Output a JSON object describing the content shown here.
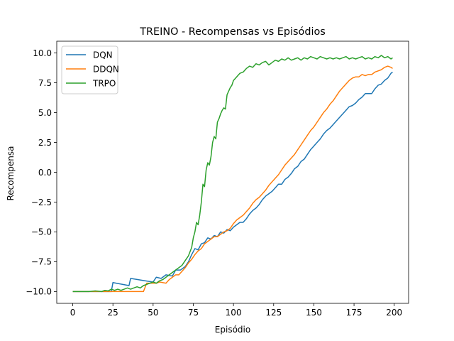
{
  "chart_data": {
    "type": "line",
    "title": "TREINO - Recompensas vs Episódios",
    "xlabel": "Episódio",
    "ylabel": "Recompensa",
    "xlim": [
      -9.95,
      208.95
    ],
    "ylim": [
      -10.99,
      10.99
    ],
    "xticks": [
      0,
      25,
      50,
      75,
      100,
      125,
      150,
      175,
      200
    ],
    "yticks": [
      -10.0,
      -7.5,
      -5.0,
      -2.5,
      0.0,
      2.5,
      5.0,
      7.5,
      10.0
    ],
    "xtick_labels": [
      "0",
      "25",
      "50",
      "75",
      "100",
      "125",
      "150",
      "175",
      "200"
    ],
    "ytick_labels": [
      "−10.0",
      "−7.5",
      "−5.0",
      "−2.5",
      "0.0",
      "2.5",
      "5.0",
      "7.5",
      "10.0"
    ],
    "grid": false,
    "legend_position": "upper left",
    "series": [
      {
        "name": "DQN",
        "color": "#1f77b4",
        "points": [
          [
            0,
            -10
          ],
          [
            24,
            -10
          ],
          [
            25,
            -9.25
          ],
          [
            35,
            -9.5
          ],
          [
            36,
            -8.9
          ],
          [
            45,
            -9.1
          ],
          [
            50,
            -9.2
          ],
          [
            52,
            -8.8
          ],
          [
            55,
            -8.9
          ],
          [
            58,
            -8.6
          ],
          [
            62,
            -8.7
          ],
          [
            64,
            -8.2
          ],
          [
            67,
            -8.2
          ],
          [
            70,
            -7.9
          ],
          [
            72,
            -7.5
          ],
          [
            74,
            -6.9
          ],
          [
            76,
            -6.4
          ],
          [
            78,
            -6.5
          ],
          [
            80,
            -6.0
          ],
          [
            82,
            -5.9
          ],
          [
            84,
            -5.5
          ],
          [
            86,
            -5.6
          ],
          [
            88,
            -5.3
          ],
          [
            90,
            -5.4
          ],
          [
            92,
            -5.0
          ],
          [
            94,
            -5.1
          ],
          [
            96,
            -4.8
          ],
          [
            98,
            -4.9
          ],
          [
            100,
            -4.6
          ],
          [
            102,
            -4.4
          ],
          [
            104,
            -4.2
          ],
          [
            106,
            -4.2
          ],
          [
            108,
            -3.9
          ],
          [
            110,
            -3.5
          ],
          [
            112,
            -3.2
          ],
          [
            114,
            -3.0
          ],
          [
            116,
            -2.7
          ],
          [
            118,
            -2.3
          ],
          [
            120,
            -2.0
          ],
          [
            122,
            -1.8
          ],
          [
            124,
            -1.6
          ],
          [
            126,
            -1.3
          ],
          [
            128,
            -1.0
          ],
          [
            130,
            -1.0
          ],
          [
            132,
            -0.6
          ],
          [
            134,
            -0.4
          ],
          [
            136,
            -0.1
          ],
          [
            138,
            0.3
          ],
          [
            140,
            0.5
          ],
          [
            142,
            0.9
          ],
          [
            144,
            1.1
          ],
          [
            146,
            1.5
          ],
          [
            148,
            1.9
          ],
          [
            150,
            2.2
          ],
          [
            152,
            2.5
          ],
          [
            154,
            2.8
          ],
          [
            156,
            3.2
          ],
          [
            158,
            3.5
          ],
          [
            160,
            3.7
          ],
          [
            162,
            4.0
          ],
          [
            164,
            4.3
          ],
          [
            166,
            4.6
          ],
          [
            168,
            4.9
          ],
          [
            170,
            5.2
          ],
          [
            172,
            5.5
          ],
          [
            174,
            5.6
          ],
          [
            176,
            5.8
          ],
          [
            178,
            6.1
          ],
          [
            180,
            6.3
          ],
          [
            182,
            6.6
          ],
          [
            184,
            6.6
          ],
          [
            186,
            6.6
          ],
          [
            188,
            7.0
          ],
          [
            190,
            7.3
          ],
          [
            192,
            7.4
          ],
          [
            194,
            7.7
          ],
          [
            196,
            7.9
          ],
          [
            198,
            8.3
          ],
          [
            199,
            8.4
          ]
        ]
      },
      {
        "name": "DDQN",
        "color": "#ff7f0e",
        "points": [
          [
            0,
            -10
          ],
          [
            44,
            -10
          ],
          [
            46,
            -9.3
          ],
          [
            52,
            -9.3
          ],
          [
            54,
            -9.2
          ],
          [
            58,
            -9.3
          ],
          [
            60,
            -9.0
          ],
          [
            64,
            -8.6
          ],
          [
            66,
            -8.6
          ],
          [
            68,
            -8.3
          ],
          [
            70,
            -8.0
          ],
          [
            72,
            -7.6
          ],
          [
            74,
            -7.3
          ],
          [
            76,
            -6.9
          ],
          [
            78,
            -6.6
          ],
          [
            80,
            -6.4
          ],
          [
            82,
            -6.0
          ],
          [
            84,
            -5.8
          ],
          [
            86,
            -5.6
          ],
          [
            88,
            -5.4
          ],
          [
            90,
            -5.4
          ],
          [
            92,
            -5.2
          ],
          [
            94,
            -5.0
          ],
          [
            96,
            -4.9
          ],
          [
            98,
            -4.7
          ],
          [
            100,
            -4.3
          ],
          [
            102,
            -4.0
          ],
          [
            104,
            -3.8
          ],
          [
            106,
            -3.6
          ],
          [
            108,
            -3.3
          ],
          [
            110,
            -3.0
          ],
          [
            112,
            -2.6
          ],
          [
            114,
            -2.3
          ],
          [
            116,
            -2.1
          ],
          [
            118,
            -1.8
          ],
          [
            120,
            -1.5
          ],
          [
            122,
            -1.1
          ],
          [
            124,
            -0.8
          ],
          [
            126,
            -0.5
          ],
          [
            128,
            -0.2
          ],
          [
            130,
            0.2
          ],
          [
            132,
            0.6
          ],
          [
            134,
            0.9
          ],
          [
            136,
            1.2
          ],
          [
            138,
            1.5
          ],
          [
            140,
            1.9
          ],
          [
            142,
            2.3
          ],
          [
            144,
            2.7
          ],
          [
            146,
            3.1
          ],
          [
            148,
            3.5
          ],
          [
            150,
            3.8
          ],
          [
            152,
            4.2
          ],
          [
            154,
            4.6
          ],
          [
            156,
            5.0
          ],
          [
            158,
            5.3
          ],
          [
            160,
            5.7
          ],
          [
            162,
            6.0
          ],
          [
            164,
            6.4
          ],
          [
            166,
            6.8
          ],
          [
            168,
            7.1
          ],
          [
            170,
            7.4
          ],
          [
            172,
            7.7
          ],
          [
            174,
            7.9
          ],
          [
            176,
            8.0
          ],
          [
            178,
            8.0
          ],
          [
            180,
            8.2
          ],
          [
            182,
            8.1
          ],
          [
            184,
            8.2
          ],
          [
            186,
            8.2
          ],
          [
            188,
            8.4
          ],
          [
            190,
            8.5
          ],
          [
            192,
            8.6
          ],
          [
            194,
            8.8
          ],
          [
            196,
            8.9
          ],
          [
            198,
            8.8
          ],
          [
            199,
            8.7
          ]
        ]
      },
      {
        "name": "TRPO",
        "color": "#2ca02c",
        "points": [
          [
            0,
            -10
          ],
          [
            10,
            -10
          ],
          [
            14,
            -9.95
          ],
          [
            18,
            -10
          ],
          [
            20,
            -9.9
          ],
          [
            22,
            -9.95
          ],
          [
            24,
            -9.8
          ],
          [
            26,
            -9.9
          ],
          [
            28,
            -9.8
          ],
          [
            30,
            -9.9
          ],
          [
            32,
            -9.8
          ],
          [
            34,
            -9.7
          ],
          [
            36,
            -9.8
          ],
          [
            38,
            -9.7
          ],
          [
            40,
            -9.6
          ],
          [
            42,
            -9.7
          ],
          [
            44,
            -9.5
          ],
          [
            46,
            -9.4
          ],
          [
            48,
            -9.3
          ],
          [
            50,
            -9.2
          ],
          [
            52,
            -9.3
          ],
          [
            54,
            -9.1
          ],
          [
            56,
            -9.0
          ],
          [
            58,
            -8.8
          ],
          [
            60,
            -8.6
          ],
          [
            62,
            -8.4
          ],
          [
            64,
            -8.2
          ],
          [
            66,
            -8.0
          ],
          [
            68,
            -7.8
          ],
          [
            70,
            -7.4
          ],
          [
            72,
            -7.0
          ],
          [
            74,
            -6.3
          ],
          [
            75,
            -5.5
          ],
          [
            76,
            -5.0
          ],
          [
            77,
            -4.2
          ],
          [
            78,
            -4.4
          ],
          [
            79,
            -3.6
          ],
          [
            80,
            -2.5
          ],
          [
            81,
            -1.0
          ],
          [
            82,
            -1.2
          ],
          [
            83,
            0.2
          ],
          [
            84,
            0.8
          ],
          [
            85,
            0.6
          ],
          [
            86,
            1.3
          ],
          [
            87,
            2.5
          ],
          [
            88,
            3.0
          ],
          [
            89,
            2.8
          ],
          [
            90,
            4.2
          ],
          [
            91,
            4.5
          ],
          [
            92,
            4.9
          ],
          [
            93,
            5.2
          ],
          [
            94,
            5.4
          ],
          [
            95,
            5.3
          ],
          [
            96,
            6.5
          ],
          [
            97,
            6.8
          ],
          [
            98,
            7.1
          ],
          [
            99,
            7.3
          ],
          [
            100,
            7.7
          ],
          [
            102,
            8.0
          ],
          [
            104,
            8.3
          ],
          [
            106,
            8.4
          ],
          [
            108,
            8.7
          ],
          [
            110,
            8.9
          ],
          [
            112,
            8.8
          ],
          [
            114,
            9.1
          ],
          [
            116,
            9.0
          ],
          [
            118,
            9.2
          ],
          [
            120,
            9.3
          ],
          [
            122,
            9.0
          ],
          [
            124,
            9.2
          ],
          [
            126,
            9.4
          ],
          [
            128,
            9.3
          ],
          [
            130,
            9.5
          ],
          [
            132,
            9.4
          ],
          [
            134,
            9.6
          ],
          [
            136,
            9.4
          ],
          [
            138,
            9.5
          ],
          [
            140,
            9.6
          ],
          [
            142,
            9.4
          ],
          [
            144,
            9.6
          ],
          [
            146,
            9.5
          ],
          [
            148,
            9.7
          ],
          [
            150,
            9.6
          ],
          [
            152,
            9.5
          ],
          [
            154,
            9.7
          ],
          [
            156,
            9.6
          ],
          [
            158,
            9.5
          ],
          [
            160,
            9.6
          ],
          [
            162,
            9.5
          ],
          [
            164,
            9.6
          ],
          [
            166,
            9.5
          ],
          [
            168,
            9.6
          ],
          [
            170,
            9.7
          ],
          [
            172,
            9.5
          ],
          [
            174,
            9.6
          ],
          [
            176,
            9.5
          ],
          [
            178,
            9.6
          ],
          [
            180,
            9.7
          ],
          [
            182,
            9.5
          ],
          [
            184,
            9.6
          ],
          [
            186,
            9.5
          ],
          [
            188,
            9.7
          ],
          [
            190,
            9.6
          ],
          [
            192,
            9.8
          ],
          [
            194,
            9.6
          ],
          [
            196,
            9.7
          ],
          [
            198,
            9.5
          ],
          [
            199,
            9.6
          ]
        ]
      }
    ]
  }
}
